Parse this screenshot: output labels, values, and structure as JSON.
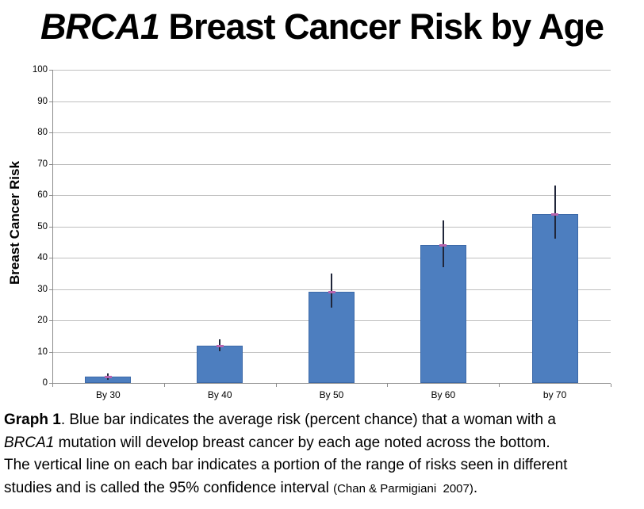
{
  "title": {
    "italic_part": "BRCA1",
    "rest": " Breast Cancer Risk by Age"
  },
  "chart_data": {
    "type": "bar",
    "title": "BRCA1 Breast Cancer Risk by Age",
    "categories": [
      "By 30",
      "By 40",
      "By 50",
      "By 60",
      "by 70"
    ],
    "values": [
      2,
      12,
      29,
      44,
      54
    ],
    "error_low": [
      1,
      10,
      24,
      37,
      46
    ],
    "error_high": [
      3,
      14,
      35,
      52,
      63
    ],
    "xlabel": "",
    "ylabel": "Breast Cancer Risk",
    "ylim": [
      0,
      100
    ],
    "yticks": [
      0,
      10,
      20,
      30,
      40,
      50,
      60,
      70,
      80,
      90,
      100
    ],
    "grid": true,
    "legend": false,
    "bar_color": "#4d7ebf",
    "error_bar_color": "#20263a",
    "mean_marker_color": "#b763ae"
  },
  "colors": {
    "grid": "#bfbfbf",
    "axis": "#8c8c8c",
    "text": "#000000",
    "background": "#ffffff"
  },
  "caption": {
    "lines": [
      {
        "segments": [
          {
            "text": "Graph 1",
            "bold": true
          },
          {
            "text": ". Blue bar indicates the average risk (percent chance) that a woman with a"
          }
        ]
      },
      {
        "segments": [
          {
            "text": "BRCA1",
            "italic": true
          },
          {
            "text": " mutation will develop breast cancer by each age noted across the bottom."
          }
        ]
      },
      {
        "segments": [
          {
            "text": "The vertical line on each bar indicates a portion of the range of risks seen in different"
          }
        ]
      },
      {
        "segments": [
          {
            "text": "studies and is called the 95% confidence interval "
          },
          {
            "text": "(Chan & Parmigiani  2007)",
            "small": true
          },
          {
            "text": "."
          }
        ]
      }
    ]
  }
}
